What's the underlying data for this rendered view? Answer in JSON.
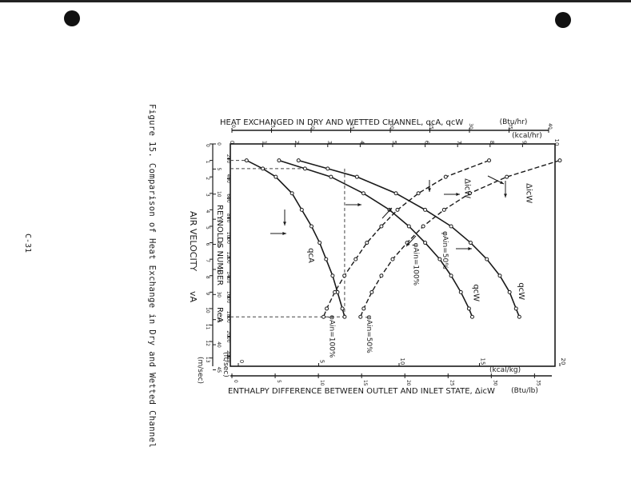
{
  "page": {
    "page_number": "C-31",
    "caption": "Figure 15.  Comparison of Heat Exchange in Dry and Wetted Channel"
  },
  "chart_data": {
    "type": "line",
    "title": "",
    "axes": {
      "top_title": "HEAT EXCHANGED IN DRY AND WETTED CHANNEL, qcA, qcW",
      "top_unit_label": "(Btu/hr)",
      "top_ticks": [
        "0",
        "5",
        "10",
        "15",
        "20",
        "25",
        "30",
        "35",
        "40"
      ],
      "upper_unit_label": "(kcal/hr)",
      "upper_range": [
        0,
        10
      ],
      "upper_ticks": [
        "0",
        "1",
        "2",
        "3",
        "4",
        "5",
        "6",
        "7",
        "8",
        "9",
        "10"
      ],
      "bottom_title": "ENTHALPY DIFFERENCE BETWEEN OUTLET AND INLET STATE, ΔicW",
      "bottom_unit_label": "(Btu/lb)",
      "bottom_ticks": [
        "0",
        "5",
        "10",
        "15",
        "20",
        "25",
        "30",
        "35"
      ],
      "lower_unit_label": "(kcal/kg)",
      "lower_range": [
        0,
        20
      ],
      "lower_ticks": [
        "0",
        "5",
        "10",
        "15",
        "20"
      ],
      "left_title": "AIR VELOCITY",
      "left_title_symbol": "vA",
      "left_ft_ticks": [
        "0",
        "5",
        "10",
        "15",
        "20",
        "25",
        "30",
        "35",
        "40",
        "45"
      ],
      "left_ft_unit": "(ft/sec)",
      "left_m_ticks": [
        "0",
        "1",
        "2",
        "3",
        "4",
        "5",
        "6",
        "7",
        "8",
        "9",
        "10",
        "11",
        "12",
        "13"
      ],
      "left_m_unit": "(m/sec)",
      "left_m_range": [
        0,
        13.5
      ],
      "reynolds_title": "REYNOLDS NUMBER",
      "reynolds_symbol": "ReA",
      "reynolds_ticks": [
        "200",
        "400",
        "600",
        "800",
        "1000",
        "1200",
        "1400",
        "1600",
        "1800",
        "2000",
        "2200"
      ]
    },
    "series": [
      {
        "name": "qcA",
        "unit": "kcal/hr",
        "style": "solid",
        "label": "qcA",
        "points": [
          [
            1.0,
            0.5
          ],
          [
            1.5,
            1.0
          ],
          [
            2.0,
            1.4
          ],
          [
            3.0,
            1.9
          ],
          [
            4.0,
            2.2
          ],
          [
            5.0,
            2.5
          ],
          [
            6.0,
            2.75
          ],
          [
            7.0,
            2.95
          ],
          [
            8.0,
            3.15
          ],
          [
            9.0,
            3.3
          ],
          [
            10.0,
            3.45
          ],
          [
            10.5,
            3.52
          ]
        ]
      },
      {
        "name": "qcW φAin=100%",
        "unit": "kcal/hr",
        "style": "solid",
        "label": "qcW",
        "phi_label": "φAin=100%",
        "points": [
          [
            1.0,
            1.5
          ],
          [
            1.5,
            2.3
          ],
          [
            2.0,
            3.1
          ],
          [
            3.0,
            4.1
          ],
          [
            4.0,
            4.9
          ],
          [
            5.0,
            5.5
          ],
          [
            6.0,
            6.0
          ],
          [
            7.0,
            6.45
          ],
          [
            8.0,
            6.8
          ],
          [
            9.0,
            7.1
          ],
          [
            10.0,
            7.35
          ],
          [
            10.5,
            7.45
          ]
        ]
      },
      {
        "name": "qcW φAin=50%",
        "unit": "kcal/hr",
        "style": "solid",
        "label": "qcW",
        "phi_label": "φAin=50%",
        "points": [
          [
            1.0,
            2.1
          ],
          [
            1.5,
            3.0
          ],
          [
            2.0,
            3.9
          ],
          [
            3.0,
            5.1
          ],
          [
            4.0,
            6.0
          ],
          [
            5.0,
            6.8
          ],
          [
            6.0,
            7.4
          ],
          [
            7.0,
            7.9
          ],
          [
            8.0,
            8.3
          ],
          [
            9.0,
            8.6
          ],
          [
            10.0,
            8.8
          ],
          [
            10.5,
            8.9
          ]
        ]
      },
      {
        "name": "ΔicW φAin=100%",
        "unit": "kcal/kg",
        "style": "dashed",
        "label": "ΔicW",
        "phi_label": "φAin=100%",
        "points": [
          [
            1.0,
            15.6
          ],
          [
            2.0,
            12.9
          ],
          [
            3.0,
            11.2
          ],
          [
            4.0,
            9.9
          ],
          [
            5.0,
            8.9
          ],
          [
            6.0,
            8.0
          ],
          [
            7.0,
            7.3
          ],
          [
            8.0,
            6.6
          ],
          [
            9.0,
            6.0
          ],
          [
            10.0,
            5.5
          ],
          [
            10.5,
            5.3
          ]
        ]
      },
      {
        "name": "ΔicW φAin=50%",
        "unit": "kcal/kg",
        "style": "dashed",
        "label": "ΔicW",
        "phi_label": "φAin=50%",
        "points": [
          [
            1.0,
            20.0
          ],
          [
            2.0,
            16.7
          ],
          [
            3.0,
            14.4
          ],
          [
            4.0,
            12.8
          ],
          [
            5.0,
            11.5
          ],
          [
            6.0,
            10.5
          ],
          [
            7.0,
            9.6
          ],
          [
            8.0,
            8.9
          ],
          [
            9.0,
            8.3
          ],
          [
            10.0,
            7.8
          ],
          [
            10.5,
            7.6
          ]
        ]
      }
    ],
    "grid": false,
    "legend": "none"
  }
}
